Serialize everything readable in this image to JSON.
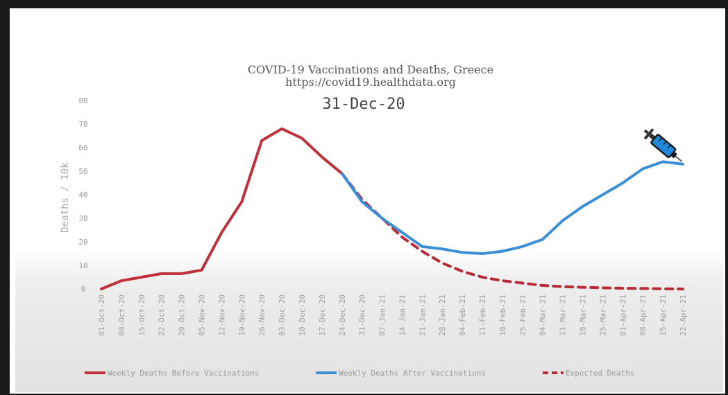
{
  "chart_data": {
    "type": "line",
    "title": "COVID-19 Vaccinations and Deaths, Greece",
    "subtitle": "https://covid19.healthdata.org",
    "current_date": "31-Dec-20",
    "ylabel": "Deaths / 10k",
    "ylim": [
      0,
      80
    ],
    "yticks": [
      0,
      10,
      20,
      30,
      40,
      50,
      60,
      70,
      80
    ],
    "categories": [
      "01-Oct-20",
      "08-Oct-20",
      "15-Oct-20",
      "22-Oct-20",
      "29-Oct-20",
      "05-Nov-20",
      "12-Nov-20",
      "19-Nov-20",
      "26-Nov-20",
      "03-Dec-20",
      "10-Dec-20",
      "17-Dec-20",
      "24-Dec-20",
      "31-Dec-20",
      "07-Jan-21",
      "14-Jan-21",
      "21-Jan-21",
      "28-Jan-21",
      "04-Feb-21",
      "11-Feb-21",
      "18-Feb-21",
      "25-Feb-21",
      "04-Mar-21",
      "11-Mar-21",
      "18-Mar-21",
      "25-Mar-21",
      "01-Apr-21",
      "08-Apr-21",
      "15-Apr-21",
      "22-Apr-21"
    ],
    "series": [
      {
        "name": "Weekly Deaths Before Vaccinations",
        "color": "#c0303a",
        "style": "solid",
        "values": [
          0,
          3.5,
          5,
          6.5,
          6.5,
          8,
          24,
          37,
          63,
          68,
          64,
          56,
          49,
          null,
          null,
          null,
          null,
          null,
          null,
          null,
          null,
          null,
          null,
          null,
          null,
          null,
          null,
          null,
          null,
          null
        ]
      },
      {
        "name": "Weekly Deaths After Vaccinations",
        "color": "#3b8fd6",
        "style": "solid",
        "values": [
          null,
          null,
          null,
          null,
          null,
          null,
          null,
          null,
          null,
          null,
          null,
          null,
          49,
          37,
          30,
          24,
          18,
          17,
          15.5,
          15,
          16,
          18,
          21,
          29,
          35,
          40,
          45,
          51,
          54,
          53
        ]
      },
      {
        "name": "Expected Deaths",
        "color": "#b82a35",
        "style": "dashed",
        "values": [
          null,
          null,
          null,
          null,
          null,
          null,
          null,
          null,
          null,
          null,
          null,
          null,
          49,
          38,
          30,
          22,
          16,
          11,
          7.5,
          5,
          3.5,
          2.5,
          1.5,
          1,
          0.7,
          0.5,
          0.3,
          0.2,
          0.1,
          0
        ]
      }
    ],
    "icon": "syringe-icon"
  }
}
